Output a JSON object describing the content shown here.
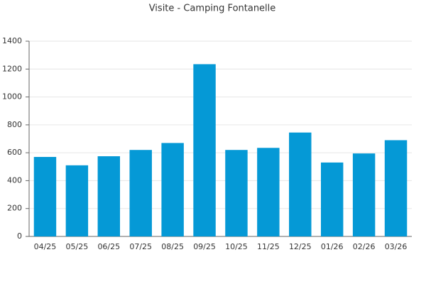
{
  "chart_data": {
    "type": "bar",
    "title": "Visite - Camping Fontanelle",
    "categories": [
      "04/25",
      "05/25",
      "06/25",
      "07/25",
      "08/25",
      "09/25",
      "10/25",
      "11/25",
      "12/25",
      "01/26",
      "02/26",
      "03/26"
    ],
    "values": [
      570,
      510,
      575,
      620,
      670,
      1235,
      620,
      635,
      745,
      530,
      595,
      690
    ],
    "color": "#0599d6",
    "ylim": [
      0,
      1400
    ],
    "yticks": [
      0,
      200,
      400,
      600,
      800,
      1000,
      1200,
      1400
    ],
    "grid": true
  }
}
